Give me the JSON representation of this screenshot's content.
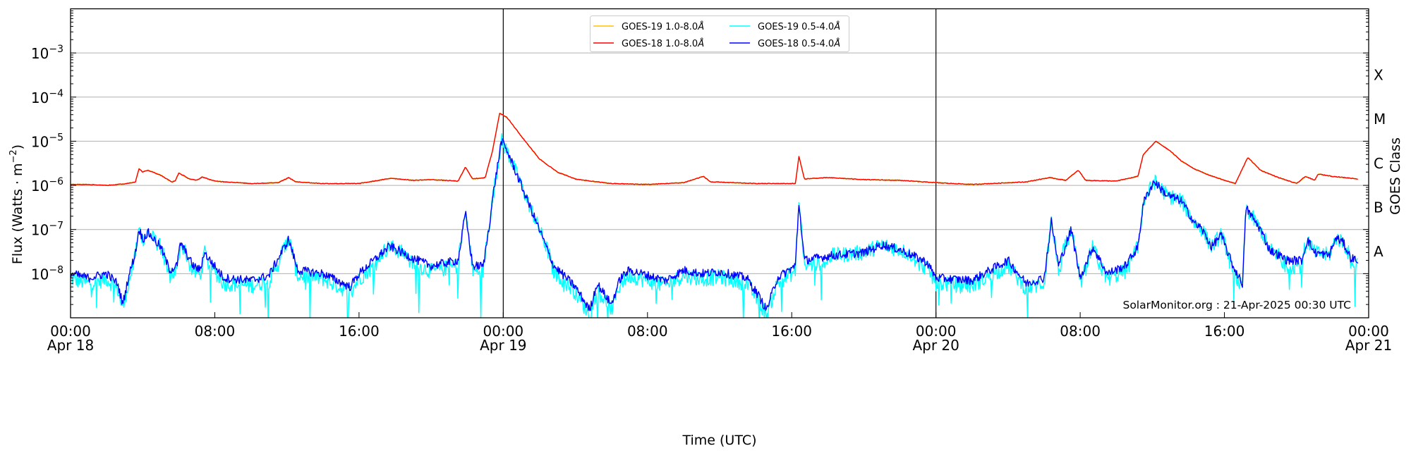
{
  "chart_data": {
    "type": "line",
    "title": "",
    "xlabel": "Time (UTC)",
    "ylabel": {
      "text": "Flux (Watts · m",
      "sup": "−2",
      "close": ")"
    },
    "y2label": "GOES Class",
    "xlim_hours": [
      0,
      72
    ],
    "ylim": [
      1e-09,
      0.01
    ],
    "yscale": "log",
    "grid": "horizontal at decades",
    "x_ticks": [
      {
        "hour": 0,
        "time": "00:00",
        "date": "Apr 18"
      },
      {
        "hour": 8,
        "time": "08:00",
        "date": ""
      },
      {
        "hour": 16,
        "time": "16:00",
        "date": ""
      },
      {
        "hour": 24,
        "time": "00:00",
        "date": "Apr 19"
      },
      {
        "hour": 32,
        "time": "08:00",
        "date": ""
      },
      {
        "hour": 40,
        "time": "16:00",
        "date": ""
      },
      {
        "hour": 48,
        "time": "00:00",
        "date": "Apr 20"
      },
      {
        "hour": 56,
        "time": "08:00",
        "date": ""
      },
      {
        "hour": 64,
        "time": "16:00",
        "date": ""
      },
      {
        "hour": 72,
        "time": "00:00",
        "date": "Apr 21"
      }
    ],
    "day_boundaries_hours": [
      24,
      48
    ],
    "y_ticks": [
      {
        "base": "10",
        "exp": "−3",
        "value": 0.001
      },
      {
        "base": "10",
        "exp": "−4",
        "value": 0.0001
      },
      {
        "base": "10",
        "exp": "−5",
        "value": 1e-05
      },
      {
        "base": "10",
        "exp": "−6",
        "value": 1e-06
      },
      {
        "base": "10",
        "exp": "−7",
        "value": 1e-07
      },
      {
        "base": "10",
        "exp": "−8",
        "value": 1e-08
      }
    ],
    "class_labels": [
      {
        "label": "X",
        "value": 0.000316
      },
      {
        "label": "M",
        "value": 3.16e-05
      },
      {
        "label": "C",
        "value": 3.16e-06
      },
      {
        "label": "B",
        "value": 3.16e-07
      },
      {
        "label": "A",
        "value": 3.16e-08
      }
    ],
    "legend": {
      "placement": "top-center",
      "columns": 2
    },
    "series": [
      {
        "name": "GOES-19 1.0-8.0",
        "unit": "Å",
        "color": "#ffc000",
        "derived_from": "GOES-18 1.0-8.0",
        "noise": 0.01,
        "points": []
      },
      {
        "name": "GOES-18 1.0-8.0",
        "unit": "Å",
        "color": "#ff0000",
        "noise": 0.008,
        "points": [
          [
            0,
            1.05e-06
          ],
          [
            1,
            1.05e-06
          ],
          [
            2,
            1e-06
          ],
          [
            3,
            1.08e-06
          ],
          [
            3.6,
            1.2e-06
          ],
          [
            3.8,
            2.4e-06
          ],
          [
            4.0,
            2e-06
          ],
          [
            4.3,
            2.2e-06
          ],
          [
            5.0,
            1.7e-06
          ],
          [
            5.6,
            1.2e-06
          ],
          [
            5.8,
            1.25e-06
          ],
          [
            6.0,
            1.9e-06
          ],
          [
            6.6,
            1.4e-06
          ],
          [
            7.0,
            1.3e-06
          ],
          [
            7.3,
            1.55e-06
          ],
          [
            8,
            1.25e-06
          ],
          [
            10,
            1.1e-06
          ],
          [
            11.5,
            1.15e-06
          ],
          [
            12.1,
            1.5e-06
          ],
          [
            12.5,
            1.2e-06
          ],
          [
            14,
            1.1e-06
          ],
          [
            16,
            1.1e-06
          ],
          [
            17.8,
            1.45e-06
          ],
          [
            19,
            1.3e-06
          ],
          [
            20,
            1.35e-06
          ],
          [
            21.5,
            1.25e-06
          ],
          [
            21.9,
            2.6e-06
          ],
          [
            22.3,
            1.4e-06
          ],
          [
            23,
            1.5e-06
          ],
          [
            23.4,
            6e-06
          ],
          [
            23.8,
            4.3e-05
          ],
          [
            24.2,
            3.5e-05
          ],
          [
            25,
            1.3e-05
          ],
          [
            26,
            4e-06
          ],
          [
            27,
            2e-06
          ],
          [
            28,
            1.4e-06
          ],
          [
            28.5,
            1.3e-06
          ],
          [
            30,
            1.1e-06
          ],
          [
            32,
            1.05e-06
          ],
          [
            34,
            1.15e-06
          ],
          [
            35.1,
            1.6e-06
          ],
          [
            35.5,
            1.2e-06
          ],
          [
            38,
            1.1e-06
          ],
          [
            40.2,
            1.1e-06
          ],
          [
            40.4,
            4.5e-06
          ],
          [
            40.7,
            1.4e-06
          ],
          [
            42,
            1.5e-06
          ],
          [
            44,
            1.35e-06
          ],
          [
            46,
            1.3e-06
          ],
          [
            48,
            1.15e-06
          ],
          [
            50,
            1.05e-06
          ],
          [
            53,
            1.2e-06
          ],
          [
            54.3,
            1.5e-06
          ],
          [
            55.2,
            1.3e-06
          ],
          [
            55.9,
            2.2e-06
          ],
          [
            56.3,
            1.3e-06
          ],
          [
            58,
            1.25e-06
          ],
          [
            59.2,
            1.6e-06
          ],
          [
            59.5,
            5e-06
          ],
          [
            60.2,
            1e-05
          ],
          [
            61,
            6e-06
          ],
          [
            61.6,
            3.6e-06
          ],
          [
            62.3,
            2.4e-06
          ],
          [
            63,
            1.8e-06
          ],
          [
            64,
            1.3e-06
          ],
          [
            64.6,
            1.1e-06
          ],
          [
            65.3,
            4.3e-06
          ],
          [
            66,
            2.2e-06
          ],
          [
            67,
            1.5e-06
          ],
          [
            68,
            1.1e-06
          ],
          [
            68.5,
            1.6e-06
          ],
          [
            69,
            1.3e-06
          ],
          [
            69.2,
            1.8e-06
          ],
          [
            70,
            1.6e-06
          ],
          [
            71.4,
            1.4e-06
          ]
        ]
      },
      {
        "name": "GOES-19 0.5-4.0",
        "unit": "Å",
        "color": "#00ffff",
        "derived_from": "GOES-18 0.5-4.0",
        "noise": 0.18,
        "points": []
      },
      {
        "name": "GOES-18 0.5-4.0",
        "unit": "Å",
        "color": "#0000ff",
        "noise": 0.1,
        "points": [
          [
            0,
            1e-08
          ],
          [
            1,
            8e-09
          ],
          [
            2,
            1e-08
          ],
          [
            2.6,
            6e-09
          ],
          [
            2.9,
            2e-09
          ],
          [
            3.2,
            8e-09
          ],
          [
            3.6,
            3e-08
          ],
          [
            3.8,
            1.05e-07
          ],
          [
            4.0,
            6e-08
          ],
          [
            4.3,
            8.5e-08
          ],
          [
            5,
            4e-08
          ],
          [
            5.5,
            1.2e-08
          ],
          [
            5.9,
            1.5e-08
          ],
          [
            6.1,
            5e-08
          ],
          [
            6.8,
            1.5e-08
          ],
          [
            7.2,
            1.2e-08
          ],
          [
            7.4,
            3e-08
          ],
          [
            8.5,
            8e-09
          ],
          [
            10,
            7e-09
          ],
          [
            11,
            9e-09
          ],
          [
            12.1,
            6e-08
          ],
          [
            12.6,
            1.2e-08
          ],
          [
            14,
            1e-08
          ],
          [
            15.5,
            5e-09
          ],
          [
            16,
            1e-08
          ],
          [
            17.7,
            4.2e-08
          ],
          [
            19,
            2.2e-08
          ],
          [
            20,
            1.5e-08
          ],
          [
            21.5,
            2e-08
          ],
          [
            21.9,
            2.4e-07
          ],
          [
            22.3,
            1.5e-08
          ],
          [
            22.9,
            1.5e-08
          ],
          [
            23.2,
            1.1e-07
          ],
          [
            23.5,
            9e-07
          ],
          [
            23.9,
            1.05e-05
          ],
          [
            24.3,
            5e-06
          ],
          [
            25,
            1e-06
          ],
          [
            26,
            1e-07
          ],
          [
            26.8,
            1.5e-08
          ],
          [
            27.5,
            8e-09
          ],
          [
            28,
            5e-09
          ],
          [
            28.8,
            1.5e-09
          ],
          [
            29.2,
            6e-09
          ],
          [
            30,
            2e-09
          ],
          [
            30.5,
            8e-09
          ],
          [
            31,
            1.2e-08
          ],
          [
            33,
            7e-09
          ],
          [
            34,
            1.2e-08
          ],
          [
            35,
            1e-08
          ],
          [
            36,
            1.1e-08
          ],
          [
            37.5,
            8e-09
          ],
          [
            38.2,
            3e-09
          ],
          [
            38.6,
            1.5e-09
          ],
          [
            39.2,
            8e-09
          ],
          [
            40.2,
            1.5e-08
          ],
          [
            40.4,
            4e-07
          ],
          [
            40.7,
            2e-08
          ],
          [
            42,
            2.5e-08
          ],
          [
            44,
            3e-08
          ],
          [
            45,
            4.5e-08
          ],
          [
            46,
            3.5e-08
          ],
          [
            47.5,
            1.8e-08
          ],
          [
            48,
            8e-09
          ],
          [
            50,
            7e-09
          ],
          [
            51,
            1.2e-08
          ],
          [
            52,
            2e-08
          ],
          [
            53,
            6e-09
          ],
          [
            54,
            8e-09
          ],
          [
            54.4,
            1.5e-07
          ],
          [
            54.8,
            1.5e-08
          ],
          [
            55.5,
            1e-07
          ],
          [
            56,
            8e-09
          ],
          [
            56.7,
            4e-08
          ],
          [
            57.5,
            1e-08
          ],
          [
            58.5,
            1.5e-08
          ],
          [
            59.2,
            4e-08
          ],
          [
            59.5,
            4e-07
          ],
          [
            60.1,
            1.25e-06
          ],
          [
            60.8,
            6e-07
          ],
          [
            61.6,
            4.5e-07
          ],
          [
            62.4,
            1.3e-07
          ],
          [
            62.7,
            1.1e-07
          ],
          [
            63.3,
            4e-08
          ],
          [
            64.5,
            1.4e-08
          ],
          [
            65,
            6e-09
          ],
          [
            63.8,
            7.7e-08
          ],
          [
            65.2,
            3.1e-07
          ],
          [
            66,
            1e-07
          ],
          [
            66.5,
            3.5e-08
          ],
          [
            67.5,
            2e-08
          ],
          [
            68.3,
            2e-08
          ],
          [
            68.6,
            6e-08
          ],
          [
            69,
            3e-08
          ],
          [
            69.8,
            2.6e-08
          ],
          [
            70.2,
            6.5e-08
          ],
          [
            70.6,
            5e-08
          ],
          [
            71,
            2.3e-08
          ],
          [
            71.4,
            2e-08
          ]
        ]
      }
    ]
  },
  "watermark": "SolarMonitor.org : 21-Apr-2025 00:30 UTC"
}
